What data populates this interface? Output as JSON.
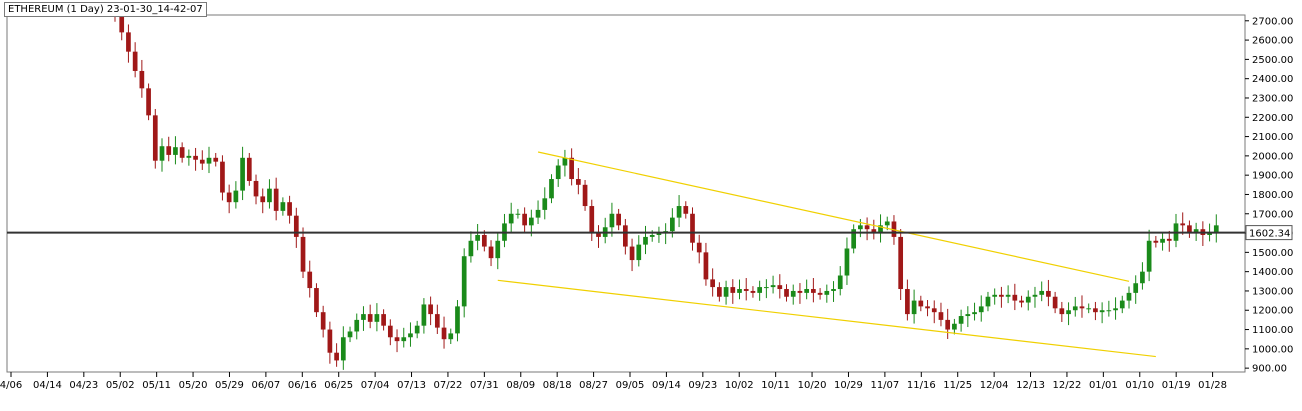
{
  "chart_data": {
    "type": "candlestick",
    "title": "ETHEREUM (1 Day) 23-01-30_14-42-07",
    "price_label": "1602.34",
    "ylim": [
      880,
      2730
    ],
    "y_ticks": [
      "2700.00",
      "2600.00",
      "2500.00",
      "2400.00",
      "2300.00",
      "2200.00",
      "2100.00",
      "2000.00",
      "1900.00",
      "1800.00",
      "1700.00",
      "1600.00",
      "1500.00",
      "1400.00",
      "1300.00",
      "1200.00",
      "1100.00",
      "1000.00",
      "900.00"
    ],
    "x_labels": [
      "4/06",
      "04/14",
      "04/23",
      "05/02",
      "05/11",
      "05/20",
      "05/29",
      "06/07",
      "06/16",
      "06/25",
      "07/04",
      "07/13",
      "07/22",
      "07/31",
      "08/09",
      "08/18",
      "08/27",
      "09/05",
      "09/14",
      "09/23",
      "10/02",
      "10/11",
      "10/20",
      "10/29",
      "11/07",
      "11/16",
      "11/25",
      "12/04",
      "12/13",
      "12/22",
      "01/01",
      "01/10",
      "01/19",
      "01/28"
    ],
    "horizontal_line": 1602.34,
    "trendlines": [
      {
        "x": [
          0.4,
          51.5
        ],
        "y": [
          1355,
          960
        ]
      },
      {
        "x": [
          6.5,
          51.2
        ],
        "y": [
          2020,
          1350
        ]
      }
    ],
    "colors": {
      "up": "#1a8a1a",
      "down": "#a01818",
      "trend": "#f0d000",
      "hline": "#333333"
    },
    "closes": [
      2720,
      2640,
      2540,
      2440,
      2350,
      2210,
      1975,
      2050,
      2005,
      2045,
      1990,
      2000,
      1980,
      1960,
      1990,
      1970,
      1810,
      1760,
      1820,
      1990,
      1870,
      1790,
      1760,
      1830,
      1715,
      1760,
      1690,
      1580,
      1400,
      1315,
      1190,
      1100,
      980,
      940,
      1060,
      1090,
      1150,
      1180,
      1140,
      1180,
      1120,
      1060,
      1040,
      1060,
      1080,
      1120,
      1230,
      1180,
      1110,
      1050,
      1080,
      1220,
      1480,
      1560,
      1590,
      1530,
      1470,
      1560,
      1650,
      1700,
      1700,
      1640,
      1680,
      1720,
      1780,
      1880,
      1950,
      1990,
      1880,
      1850,
      1740,
      1600,
      1580,
      1630,
      1700,
      1640,
      1530,
      1460,
      1540,
      1580,
      1590,
      1600,
      1610,
      1680,
      1740,
      1700,
      1550,
      1500,
      1360,
      1320,
      1270,
      1320,
      1290,
      1310,
      1300,
      1290,
      1320,
      1320,
      1330,
      1310,
      1270,
      1300,
      1290,
      1310,
      1290,
      1280,
      1300,
      1310,
      1380,
      1520,
      1620,
      1640,
      1620,
      1600,
      1640,
      1660,
      1580,
      1310,
      1180,
      1250,
      1220,
      1210,
      1190,
      1150,
      1100,
      1130,
      1170,
      1180,
      1190,
      1220,
      1270,
      1280,
      1270,
      1280,
      1250,
      1240,
      1270,
      1280,
      1300,
      1270,
      1210,
      1180,
      1200,
      1220,
      1210,
      1210,
      1190,
      1200,
      1200,
      1210,
      1250,
      1290,
      1340,
      1400,
      1560,
      1550,
      1570,
      1560,
      1650,
      1640,
      1600,
      1620,
      1590,
      1600,
      1640
    ]
  }
}
